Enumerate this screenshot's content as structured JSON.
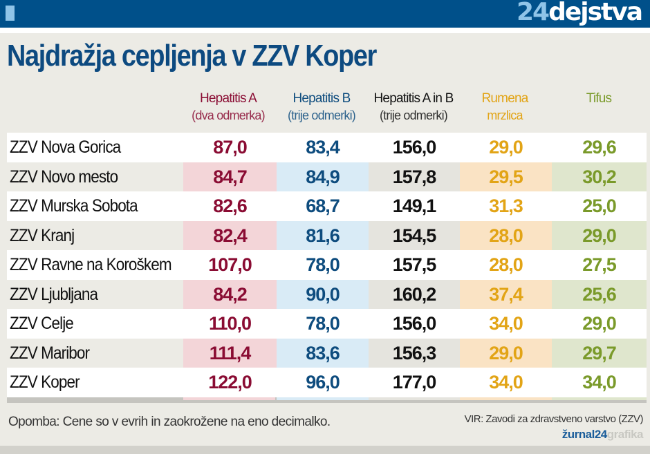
{
  "header": {
    "logo_number": "24",
    "logo_text": "dejstva"
  },
  "title": "Najdražja cepljenja v ZZV Koper",
  "chart_data": {
    "type": "table",
    "title": "Najdražja cepljenja v ZZV Koper",
    "columns": [
      {
        "name": "Hepatitis A",
        "sub": "(dva odmerka)",
        "color": "#8a0c33"
      },
      {
        "name": "Hepatitis B",
        "sub": "(trije odmerki)",
        "color": "#0e4c7e"
      },
      {
        "name": "Hepatitis A in B",
        "sub": "(trije odmerki)",
        "color": "#111111"
      },
      {
        "name": "Rumena",
        "sub": "mrzlica",
        "color": "#e2a416"
      },
      {
        "name": "Tifus",
        "sub": "",
        "color": "#7a9a2a"
      }
    ],
    "rows": [
      {
        "name": "ZZV Nova Gorica",
        "values": [
          "87,0",
          "83,4",
          "156,0",
          "29,0",
          "29,6"
        ]
      },
      {
        "name": "ZZV Novo mesto",
        "values": [
          "84,7",
          "84,9",
          "157,8",
          "29,5",
          "30,2"
        ]
      },
      {
        "name": "ZZV Murska Sobota",
        "values": [
          "82,6",
          "68,7",
          "149,1",
          "31,3",
          "25,0"
        ]
      },
      {
        "name": "ZZV Kranj",
        "values": [
          "82,4",
          "81,6",
          "154,5",
          "28,0",
          "29,0"
        ]
      },
      {
        "name": "ZZV Ravne na Koroškem",
        "values": [
          "107,0",
          "78,0",
          "157,5",
          "28,0",
          "27,5"
        ]
      },
      {
        "name": "ZZV Ljubljana",
        "values": [
          "84,2",
          "90,0",
          "160,2",
          "37,4",
          "25,6"
        ]
      },
      {
        "name": "ZZV Celje",
        "values": [
          "110,0",
          "78,0",
          "156,0",
          "34,0",
          "29,0"
        ]
      },
      {
        "name": "ZZV Maribor",
        "values": [
          "111,4",
          "83,6",
          "156,3",
          "29,0",
          "29,7"
        ]
      },
      {
        "name": "ZZV Koper",
        "values": [
          "122,0",
          "96,0",
          "177,0",
          "34,0",
          "34,0"
        ]
      }
    ]
  },
  "footer": {
    "note": "Opomba: Cene so v evrih in zaokrožene na eno decimalko.",
    "source": "VIR: Zavodi za zdravstveno varstvo (ZZV)",
    "brand_main": "žurnal24",
    "brand_sub": "grafika"
  }
}
